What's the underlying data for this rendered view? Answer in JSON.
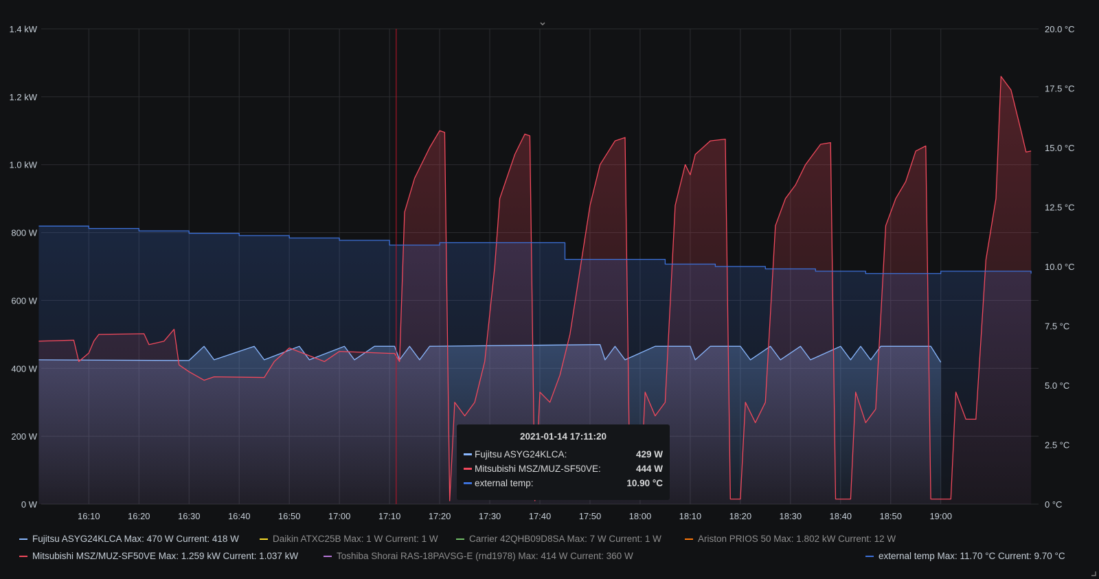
{
  "chart_data": {
    "type": "line",
    "left_axis": {
      "unit": "W",
      "ylim": [
        0,
        1400
      ],
      "ticks": [
        "0 W",
        "200 W",
        "400 W",
        "600 W",
        "800 W",
        "1.0 kW",
        "1.2 kW",
        "1.4 kW"
      ]
    },
    "right_axis": {
      "unit": "°C",
      "ylim": [
        0,
        20
      ],
      "ticks": [
        "0 °C",
        "2.5 °C",
        "5.0 °C",
        "7.5 °C",
        "10.0 °C",
        "12.5 °C",
        "15.0 °C",
        "17.5 °C",
        "20.0 °C"
      ]
    },
    "x_ticks": [
      "16:10",
      "16:20",
      "16:30",
      "16:40",
      "16:50",
      "17:00",
      "17:10",
      "17:20",
      "17:30",
      "17:40",
      "17:50",
      "18:00",
      "18:10",
      "18:20",
      "18:30",
      "18:40",
      "18:50",
      "19:00"
    ],
    "grid": true,
    "crosshair_time": "17:11:20",
    "series": [
      {
        "name": "Fujitsu ASYG24KLCA",
        "axis": "left",
        "color": "#8ab8ff",
        "points": [
          [
            "16:00",
            425
          ],
          [
            "16:30",
            423
          ],
          [
            "16:33",
            465
          ],
          [
            "16:35",
            425
          ],
          [
            "16:43",
            465
          ],
          [
            "16:45",
            425
          ],
          [
            "16:52",
            465
          ],
          [
            "16:54",
            425
          ],
          [
            "17:01",
            465
          ],
          [
            "17:03",
            425
          ],
          [
            "17:07",
            465
          ],
          [
            "17:11",
            465
          ],
          [
            "17:12",
            425
          ],
          [
            "17:14",
            465
          ],
          [
            "17:16",
            425
          ],
          [
            "17:18",
            465
          ],
          [
            "17:52",
            470
          ],
          [
            "17:53",
            425
          ],
          [
            "17:55",
            465
          ],
          [
            "17:57",
            425
          ],
          [
            "18:03",
            465
          ],
          [
            "18:10",
            465
          ],
          [
            "18:11",
            425
          ],
          [
            "18:14",
            465
          ],
          [
            "18:20",
            465
          ],
          [
            "18:22",
            425
          ],
          [
            "18:26",
            465
          ],
          [
            "18:28",
            425
          ],
          [
            "18:32",
            465
          ],
          [
            "18:34",
            425
          ],
          [
            "18:40",
            465
          ],
          [
            "18:42",
            425
          ],
          [
            "18:44",
            465
          ],
          [
            "18:46",
            425
          ],
          [
            "18:48",
            465
          ],
          [
            "18:58",
            465
          ],
          [
            "19:00",
            418
          ]
        ]
      },
      {
        "name": "Mitsubishi MSZ/MUZ-SF50VE",
        "axis": "left",
        "color": "#f2495c",
        "points": [
          [
            "16:00",
            480
          ],
          [
            "16:07",
            483
          ],
          [
            "16:08",
            420
          ],
          [
            "16:10",
            445
          ],
          [
            "16:11",
            480
          ],
          [
            "16:12",
            500
          ],
          [
            "16:21",
            502
          ],
          [
            "16:22",
            470
          ],
          [
            "16:25",
            480
          ],
          [
            "16:27",
            515
          ],
          [
            "16:28",
            410
          ],
          [
            "16:30",
            390
          ],
          [
            "16:33",
            365
          ],
          [
            "16:35",
            375
          ],
          [
            "16:45",
            373
          ],
          [
            "16:47",
            420
          ],
          [
            "16:50",
            460
          ],
          [
            "16:57",
            420
          ],
          [
            "17:00",
            450
          ],
          [
            "17:10",
            444
          ],
          [
            "17:11",
            444
          ],
          [
            "17:12",
            420
          ],
          [
            "17:13",
            860
          ],
          [
            "17:15",
            960
          ],
          [
            "17:18",
            1050
          ],
          [
            "17:20",
            1100
          ],
          [
            "17:21",
            1095
          ],
          [
            "17:22",
            10
          ],
          [
            "17:23",
            300
          ],
          [
            "17:25",
            260
          ],
          [
            "17:27",
            300
          ],
          [
            "17:29",
            420
          ],
          [
            "17:31",
            700
          ],
          [
            "17:32",
            900
          ],
          [
            "17:35",
            1030
          ],
          [
            "17:37",
            1090
          ],
          [
            "17:38",
            1085
          ],
          [
            "17:39",
            10
          ],
          [
            "17:40",
            330
          ],
          [
            "17:42",
            300
          ],
          [
            "17:44",
            380
          ],
          [
            "17:46",
            500
          ],
          [
            "17:50",
            880
          ],
          [
            "17:52",
            1000
          ],
          [
            "17:55",
            1070
          ],
          [
            "17:57",
            1080
          ],
          [
            "17:58",
            15
          ],
          [
            "18:00",
            15
          ],
          [
            "18:01",
            330
          ],
          [
            "18:03",
            260
          ],
          [
            "18:05",
            300
          ],
          [
            "18:07",
            880
          ],
          [
            "18:09",
            1000
          ],
          [
            "18:10",
            970
          ],
          [
            "18:11",
            1030
          ],
          [
            "18:14",
            1070
          ],
          [
            "18:17",
            1075
          ],
          [
            "18:18",
            15
          ],
          [
            "18:20",
            15
          ],
          [
            "18:21",
            300
          ],
          [
            "18:23",
            240
          ],
          [
            "18:25",
            300
          ],
          [
            "18:27",
            820
          ],
          [
            "18:29",
            900
          ],
          [
            "18:31",
            940
          ],
          [
            "18:33",
            1000
          ],
          [
            "18:36",
            1060
          ],
          [
            "18:38",
            1065
          ],
          [
            "18:39",
            15
          ],
          [
            "18:42",
            15
          ],
          [
            "18:43",
            330
          ],
          [
            "18:45",
            240
          ],
          [
            "18:47",
            280
          ],
          [
            "18:49",
            820
          ],
          [
            "18:51",
            900
          ],
          [
            "18:53",
            950
          ],
          [
            "18:55",
            1040
          ],
          [
            "18:57",
            1055
          ],
          [
            "18:58",
            15
          ],
          [
            "19:02",
            15
          ],
          [
            "19:03",
            330
          ],
          [
            "19:05",
            250
          ],
          [
            "19:07",
            250
          ],
          [
            "19:09",
            720
          ],
          [
            "19:11",
            900
          ],
          [
            "19:12",
            1260
          ],
          [
            "19:14",
            1220
          ],
          [
            "19:16",
            1100
          ],
          [
            "19:17",
            1037
          ],
          [
            "19:18",
            1040
          ]
        ]
      },
      {
        "name": "external temp",
        "axis": "right",
        "color": "#3d71d9",
        "points": [
          [
            "16:00",
            11.7
          ],
          [
            "16:10",
            11.6
          ],
          [
            "16:20",
            11.5
          ],
          [
            "16:30",
            11.4
          ],
          [
            "16:40",
            11.3
          ],
          [
            "16:50",
            11.2
          ],
          [
            "17:00",
            11.1
          ],
          [
            "17:10",
            10.9
          ],
          [
            "17:20",
            11.0
          ],
          [
            "17:40",
            11.0
          ],
          [
            "17:45",
            10.3
          ],
          [
            "17:55",
            10.3
          ],
          [
            "18:05",
            10.1
          ],
          [
            "18:15",
            10.0
          ],
          [
            "18:25",
            9.9
          ],
          [
            "18:35",
            9.8
          ],
          [
            "18:45",
            9.7
          ],
          [
            "18:50",
            9.7
          ],
          [
            "19:00",
            9.8
          ],
          [
            "19:10",
            9.8
          ],
          [
            "19:18",
            9.7
          ]
        ]
      }
    ]
  },
  "tooltip": {
    "time": "2021-01-14 17:11:20",
    "rows": [
      {
        "name": "Fujitsu ASYG24KLCA:",
        "value": "429 W",
        "color": "#8ab8ff"
      },
      {
        "name": "Mitsubishi MSZ/MUZ-SF50VE:",
        "value": "444 W",
        "color": "#f2495c"
      },
      {
        "name": "external temp:",
        "value": "10.90 °C",
        "color": "#3d71d9"
      }
    ]
  },
  "legend": {
    "row1": [
      {
        "label": "Fujitsu ASYG24KLCA  Max: 470 W  Current: 418 W",
        "color": "#8ab8ff",
        "dim": false
      },
      {
        "label": "Daikin ATXC25B  Max: 1 W  Current: 1 W",
        "color": "#fade2a",
        "dim": true
      },
      {
        "label": "Carrier 42QHB09D8SA  Max: 7 W  Current: 1 W",
        "color": "#73bf69",
        "dim": true
      },
      {
        "label": "Ariston PRIOS 50  Max: 1.802 kW  Current: 12 W",
        "color": "#ff780a",
        "dim": true
      }
    ],
    "row2": [
      {
        "label": "Mitsubishi MSZ/MUZ-SF50VE  Max: 1.259 kW  Current: 1.037 kW",
        "color": "#f2495c",
        "dim": false
      },
      {
        "label": "Toshiba Shorai RAS-18PAVSG-E (rnd1978)  Max: 414 W  Current: 360 W",
        "color": "#b877d9",
        "dim": true
      },
      {
        "label": "external temp  Max: 11.70 °C  Current: 9.70 °C",
        "color": "#3d71d9",
        "dim": false
      }
    ]
  },
  "icons": {
    "chevron": "chevron-down-icon",
    "resize": "resize-corner-icon"
  }
}
